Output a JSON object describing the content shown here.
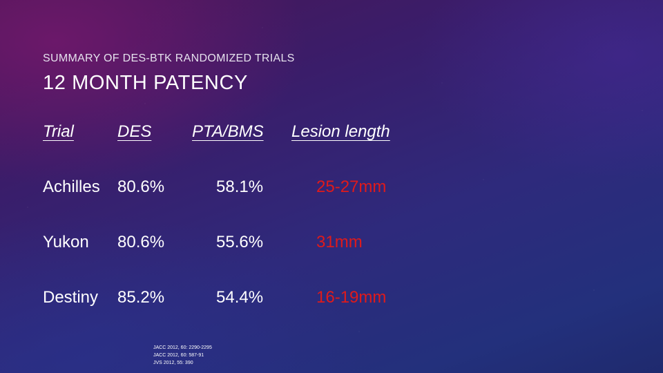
{
  "slide": {
    "subtitle": "SUMMARY OF DES-BTK RANDOMIZED TRIALS",
    "title": "12 MONTH PATENCY"
  },
  "table": {
    "headers": [
      "Trial",
      "DES",
      "PTA/BMS",
      "Lesion length"
    ],
    "rows": [
      {
        "trial": "Achilles",
        "des": "80.6%",
        "pta_bms": "58.1%",
        "lesion_length": "25-27mm"
      },
      {
        "trial": "Yukon",
        "des": "80.6%",
        "pta_bms": "55.6%",
        "lesion_length": "31mm"
      },
      {
        "trial": "Destiny",
        "des": "85.2%",
        "pta_bms": "54.4%",
        "lesion_length": "16-19mm"
      }
    ]
  },
  "references": [
    "JACC 2012, 60: 2290-2295",
    "JACC 2012, 60: 587-91",
    "JVS 2012, 55: 390"
  ],
  "colors": {
    "lesion_value": "#e01a1a",
    "text": "#ffffff"
  }
}
